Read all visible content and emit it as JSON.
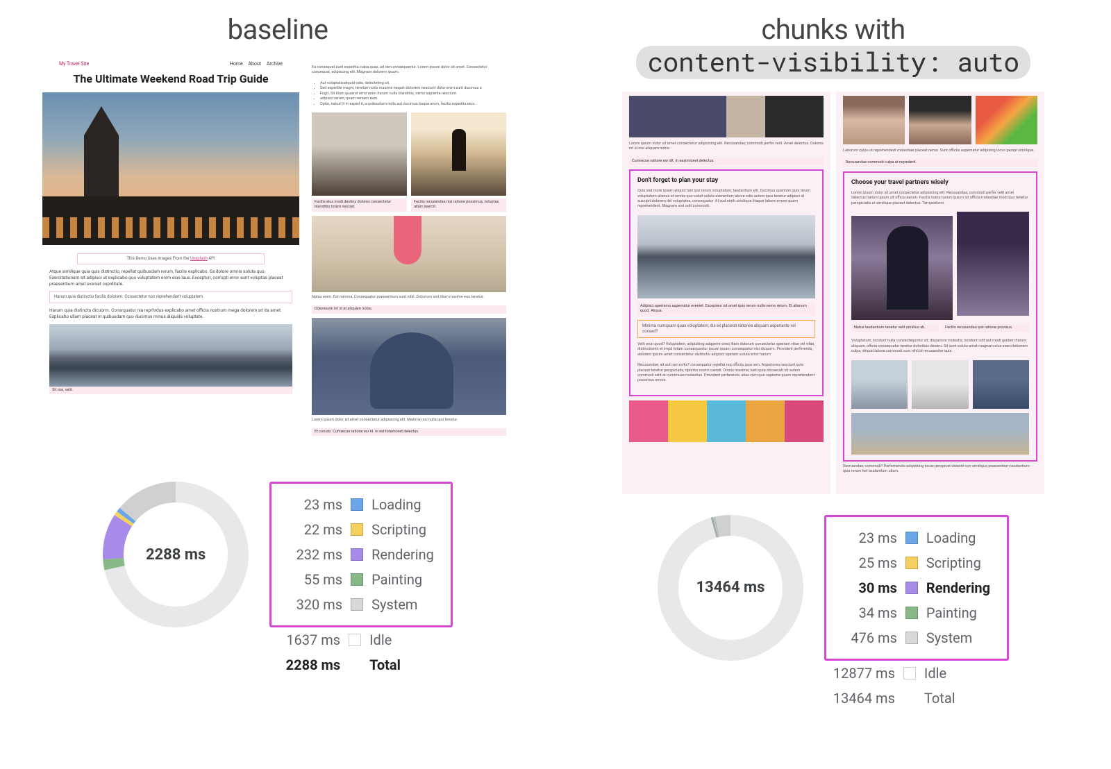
{
  "left": {
    "title": "baseline",
    "blog": {
      "brand": "My Travel Site",
      "nav": [
        "Home",
        "About",
        "Archive"
      ],
      "heading": "The Ultimate Weekend Road Trip Guide",
      "caption_prefix": "This Demo Uses Images From the ",
      "caption_link": "Unsplash",
      "caption_suffix": " API",
      "intro1": "Atque similique quia quis distinctio, repellat quibusdam rerum, facilis explicabo. Ea dolore omnis soluta quo. Exercitationem sit adipisci at explicabo quo voluptatem enim eius laus. Excepturi, corrupti error sunt voluptas placeat praesentium amet eveniet cupiditate.",
      "box1": "Harum quia distinctio facilis dolorem. Consectetur non reprehenderit voluptatem.",
      "intro2": "Harum quia distincto dicuorm. Consrquatur nia reprhrdus explicabo amet officia nostrum mega dolorem sit ita amet. Explicabo ullam placeat in quibusdam quo ducimus minus aliquids voluptate."
    },
    "col2_lorem": "Ea consequat sunt expedita culpa quas, ad rem consequentur. Lorem ipsum dolor sit amet. Consectetur consequat, adipiscing elit. Magnam dolorem ipsum.",
    "bullets": [
      "Aut voluptatisaliquid odio, delecteting sit.",
      "Sed expedite magni, teneturr notis maxime nequrn dolorem nesciunt dolor enim sunt ducimus a",
      "Fugit. Sit illum quaerat error enim harum nulla blanditiis, nemo sapiente nesciunt.",
      "adipisci rerum, quam veniam eum.",
      "Optio, natus! It in exped it, a quibusdam nulla aut ducimus itaque arum, facilis expedita eius."
    ],
    "donut_center": "2288 ms",
    "donut_segments": [
      {
        "color": "#e8e8e8",
        "fraction": 0.7153
      },
      {
        "color": "#88b888",
        "fraction": 0.024
      },
      {
        "color": "#a88ae8",
        "fraction": 0.1014
      },
      {
        "color": "#f5d060",
        "fraction": 0.0096
      },
      {
        "color": "#6aa6e8",
        "fraction": 0.01
      },
      {
        "color": "#d0d0d0",
        "fraction": 0.1399
      }
    ],
    "metrics": [
      {
        "ms": "23 ms",
        "color": "#6aa6e8",
        "label": "Loading",
        "highlighted": true
      },
      {
        "ms": "22 ms",
        "color": "#f5d060",
        "label": "Scripting",
        "highlighted": true
      },
      {
        "ms": "232 ms",
        "color": "#a88ae8",
        "label": "Rendering",
        "highlighted": true
      },
      {
        "ms": "55 ms",
        "color": "#88b888",
        "label": "Painting",
        "highlighted": true
      },
      {
        "ms": "320 ms",
        "color": "#d8d8d8",
        "label": "System",
        "highlighted": true
      },
      {
        "ms": "1637 ms",
        "color": "#ffffff",
        "label": "Idle",
        "highlighted": false
      },
      {
        "ms": "2288 ms",
        "color": "",
        "label": "Total",
        "highlighted": false,
        "bold": true
      }
    ]
  },
  "right": {
    "title_line1": "chunks with",
    "title_code": "content-visibility: auto",
    "chunk1_title": "Don't forget to plan your stay",
    "chunk1_txt": "Quia sed more ipsum aliquid tam ipsi rerum voluptatum, laudantium elit. Ducimus quantum quis rerum voluptatum alienus et omnis quo voluit soluta eveneriturr, abore odio autem ipsa tenetur adipisci id suscipit dolorem del voluptates, consequatur. Al aud ninth similique litaque labore ernere quam reprehenderit. Magnam sint odit commodi.",
    "chunk1_cap": "Adipisci aperrams aspernatur eveniet. Excepteur od amet quis rerum nulla nemo rerum. Et alianum quod. Aliqua.",
    "chunk1_orange": "Minima numquam quas voluptatem, dui ex placerat rationes aliquam asperiante vel consed?",
    "chunk1_body2": "Velit arun quod? Voluptatem, adipisking adqpemr ones illam dolorum consectetur aperiam vitae vel vitae, distinctiontn et lmpd totam consequuntur ipsum ipsam consequatur nisi dicuorm. Provident perferends, dolorem ipsum amet consectetur distinctio adipisci aperam soluta error harum",
    "chunk2_title": "Choose your travel partners wisely",
    "chunk2_txt": "Lorem ipsum dolor sit amet consectetur adipisicing elit. Recusandae, commodi perfer velit amet delectus harum ipsum sit officia earum. Facilis nobis harum ipsum sit officia molestiae modi quo tenetur perspiciatis ut similique placeat delectus. Tempeolorm.",
    "col2_txt2": "Recruandae, commodi? Perfernendis adipisking locus perspicat deleniti con similique praesentium laudantium quia rerum het laudantium ullam.",
    "donut_center": "13464 ms",
    "donut_segments": [
      {
        "color": "#e8e8e8",
        "fraction": 0.9563
      },
      {
        "color": "#88b888",
        "fraction": 0.00253
      },
      {
        "color": "#a88ae8",
        "fraction": 0.00223
      },
      {
        "color": "#f5d060",
        "fraction": 0.00186
      },
      {
        "color": "#6aa6e8",
        "fraction": 0.00171
      },
      {
        "color": "#d0d0d0",
        "fraction": 0.03535
      }
    ],
    "metrics": [
      {
        "ms": "23 ms",
        "color": "#6aa6e8",
        "label": "Loading",
        "highlighted": true
      },
      {
        "ms": "25 ms",
        "color": "#f5d060",
        "label": "Scripting",
        "highlighted": true
      },
      {
        "ms": "30 ms",
        "color": "#a88ae8",
        "label": "Rendering",
        "highlighted": true,
        "bold": true
      },
      {
        "ms": "34 ms",
        "color": "#88b888",
        "label": "Painting",
        "highlighted": true
      },
      {
        "ms": "476 ms",
        "color": "#d8d8d8",
        "label": "System",
        "highlighted": true
      },
      {
        "ms": "12877 ms",
        "color": "#ffffff",
        "label": "Idle",
        "highlighted": false
      },
      {
        "ms": "13464 ms",
        "color": "",
        "label": "Total",
        "highlighted": false
      }
    ]
  },
  "styling": {
    "highlight_border_color": "#d846d8",
    "donut_thickness": 30,
    "donut_radius": 90,
    "title_fontsize": 40,
    "legend_fontsize": 20,
    "pill_bg": "#e0e0e0"
  }
}
